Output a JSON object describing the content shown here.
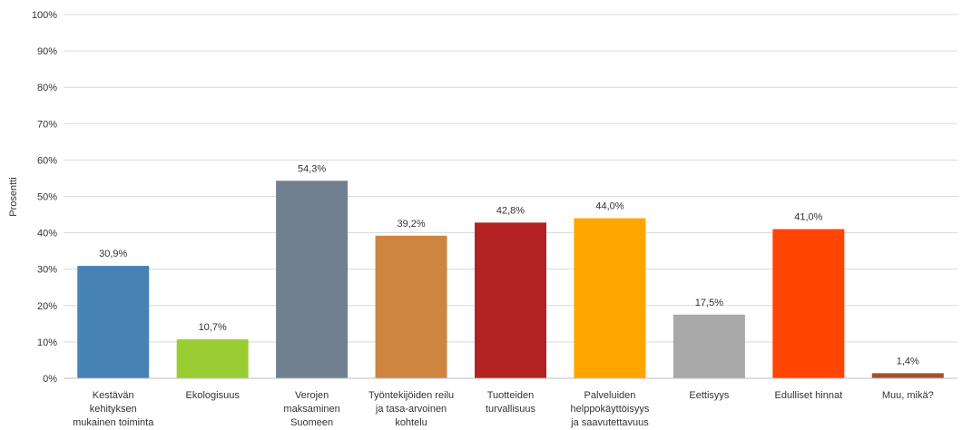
{
  "chart_data": {
    "type": "bar",
    "ylabel": "Prosentti",
    "ylim": [
      0,
      100
    ],
    "yticks": [
      "0%",
      "10%",
      "20%",
      "30%",
      "40%",
      "50%",
      "60%",
      "70%",
      "80%",
      "90%",
      "100%"
    ],
    "grid": true,
    "categories": [
      [
        "Kestävän",
        "kehityksen",
        "mukainen toiminta"
      ],
      [
        "Ekologisuus"
      ],
      [
        "Verojen",
        "maksaminen",
        "Suomeen"
      ],
      [
        "Työntekijöiden reilu",
        "ja tasa-arvoinen",
        "kohtelu"
      ],
      [
        "Tuotteiden",
        "turvallisuus"
      ],
      [
        "Palveluiden",
        "helppokäyttöisyys",
        "ja saavutettavuus"
      ],
      [
        "Eettisyys"
      ],
      [
        "Edulliset hinnat"
      ],
      [
        "Muu, mikä?"
      ]
    ],
    "values": [
      30.9,
      10.7,
      54.3,
      39.2,
      42.8,
      44.0,
      17.5,
      41.0,
      1.4
    ],
    "value_labels": [
      "30,9%",
      "10,7%",
      "54,3%",
      "39,2%",
      "42,8%",
      "44,0%",
      "17,5%",
      "41,0%",
      "1,4%"
    ],
    "colors": [
      "#4682b4",
      "#9acd32",
      "#708090",
      "#cd853f",
      "#b22222",
      "#ffa500",
      "#a9a9a9",
      "#ff4500",
      "#a0522d"
    ]
  }
}
